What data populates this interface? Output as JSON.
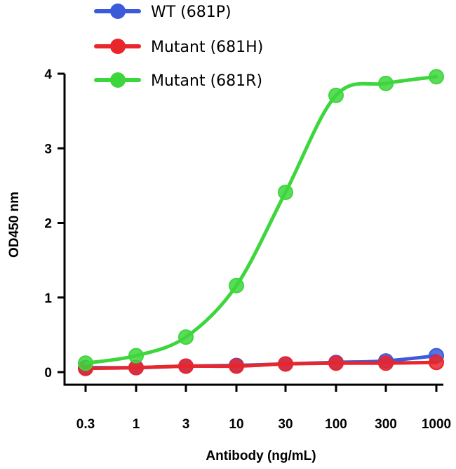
{
  "chart_data": {
    "type": "line",
    "title": "",
    "xlabel": "Antibody (ng/mL)",
    "ylabel": "OD450 nm",
    "x_scale": "log",
    "x": [
      0.3,
      1,
      3,
      10,
      30,
      100,
      300,
      1000
    ],
    "x_tick_labels": [
      "0.3",
      "1",
      "3",
      "10",
      "30",
      "100",
      "300",
      "1000"
    ],
    "xlim": [
      0.22,
      1200
    ],
    "ylim": [
      0,
      4
    ],
    "y_ticks": [
      0,
      1,
      2,
      3,
      4
    ],
    "y_tick_labels": [
      "0",
      "1",
      "2",
      "3",
      "4"
    ],
    "grid": false,
    "legend_position": "top-left",
    "series": [
      {
        "name": "WT (681P)",
        "color": "#3b5bdb",
        "values": [
          0.06,
          0.06,
          0.08,
          0.09,
          0.11,
          0.13,
          0.15,
          0.22
        ]
      },
      {
        "name": "Mutant (681H)",
        "color": "#e8262b",
        "values": [
          0.05,
          0.06,
          0.08,
          0.08,
          0.11,
          0.12,
          0.12,
          0.13
        ]
      },
      {
        "name": "Mutant (681R)",
        "color": "#3dd63d",
        "values": [
          0.12,
          0.22,
          0.47,
          1.16,
          2.41,
          3.71,
          3.87,
          3.96
        ]
      }
    ]
  }
}
